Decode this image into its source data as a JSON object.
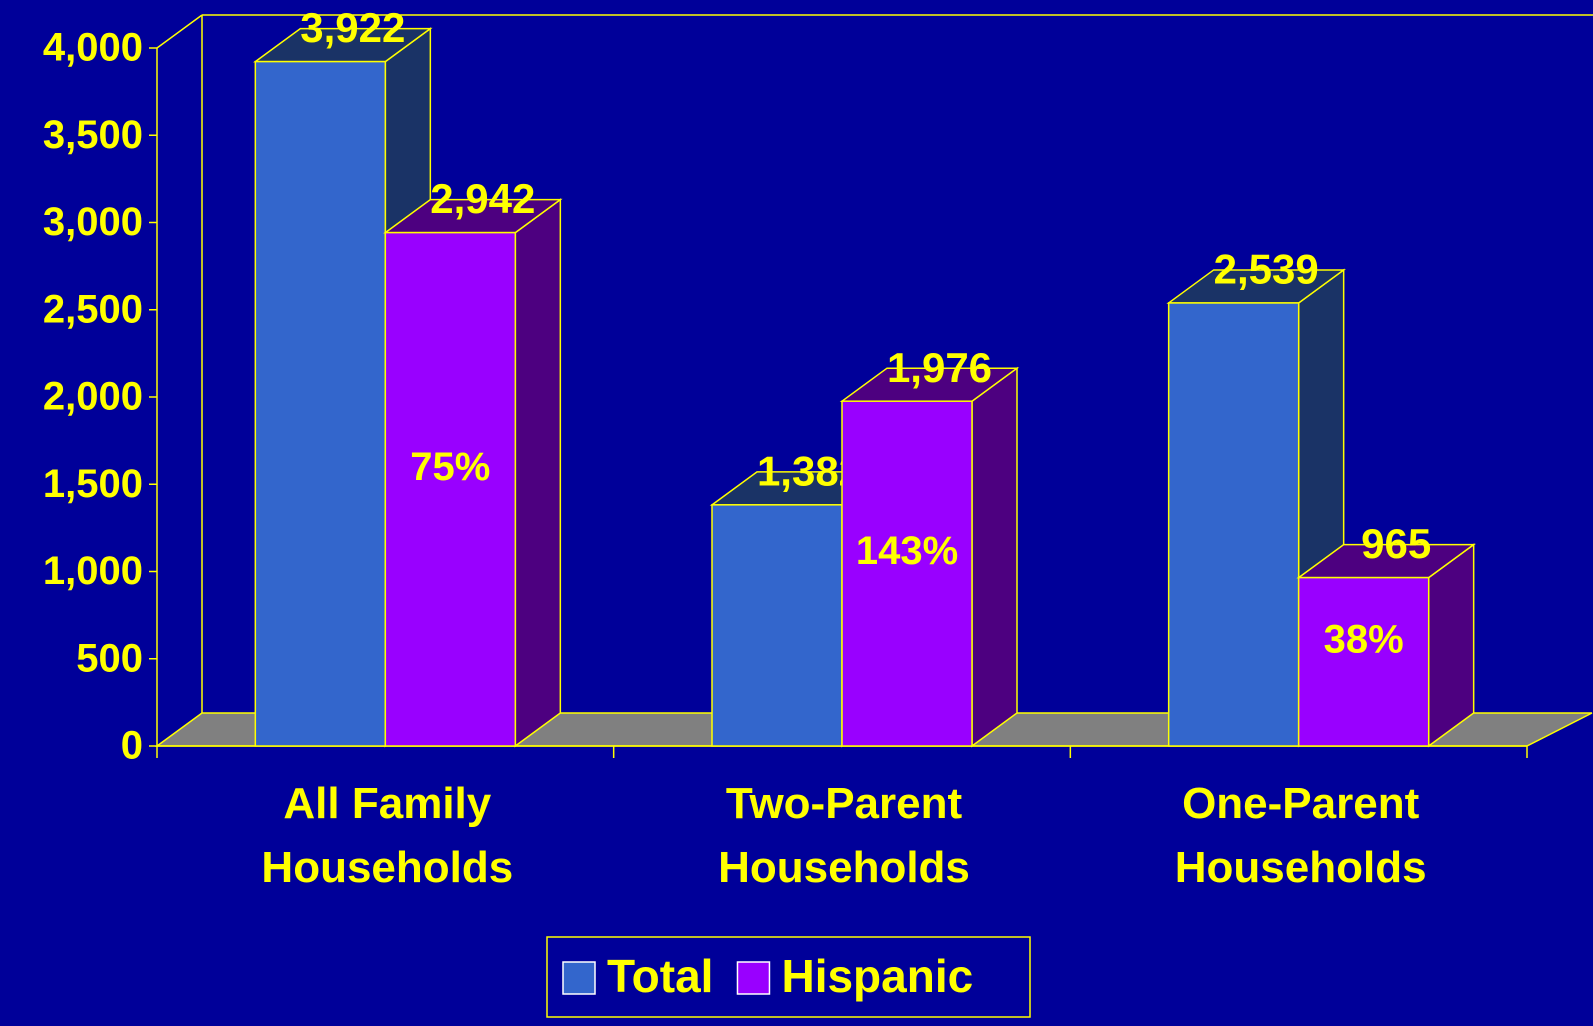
{
  "chart_data": {
    "type": "bar3d",
    "categories": [
      "All Family Households",
      "Two-Parent Households",
      "One-Parent Households"
    ],
    "series": [
      {
        "name": "Total",
        "color": "#3366cc",
        "side_color": "#1a3366",
        "values": [
          3922,
          1382,
          2539
        ],
        "value_labels": [
          "3,922",
          "1,382",
          "2,539"
        ]
      },
      {
        "name": "Hispanic",
        "color": "#9900ff",
        "side_color": "#4d0080",
        "values": [
          2942,
          1976,
          965
        ],
        "value_labels": [
          "2,942",
          "1,976",
          "965"
        ]
      }
    ],
    "annotations": [
      "75%",
      "143%",
      "38%"
    ],
    "ylim": [
      0,
      4000
    ],
    "yticks": [
      0,
      500,
      {
        "value": 1000,
        "label": "1,000"
      },
      {
        "value": 1500,
        "label": "1,500"
      },
      {
        "value": 2000,
        "label": "2,000"
      },
      {
        "value": 2500,
        "label": "2,500"
      },
      {
        "value": 3000,
        "label": "3,000"
      },
      {
        "value": 3500,
        "label": "3,500"
      },
      {
        "value": 4000,
        "label": "4,000"
      }
    ],
    "grid": false,
    "legend": "bottom"
  }
}
